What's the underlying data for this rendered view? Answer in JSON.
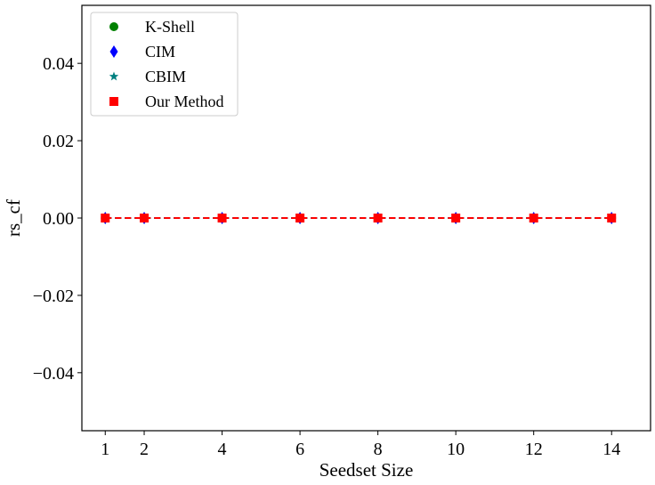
{
  "chart_data": {
    "type": "line",
    "xlabel": "Seedset Size",
    "ylabel": "rs_cf",
    "x": [
      1,
      2,
      4,
      6,
      8,
      10,
      12,
      14
    ],
    "xlim": [
      0.4,
      15.0
    ],
    "ylim": [
      -0.055,
      0.055
    ],
    "xticks": [
      1,
      2,
      4,
      6,
      8,
      10,
      12,
      14
    ],
    "yticks": [
      -0.04,
      -0.02,
      0.0,
      0.02,
      0.04
    ],
    "ytick_labels": [
      "−0.04",
      "−0.02",
      "0.00",
      "0.02",
      "0.04"
    ],
    "grid": false,
    "legend_position": "top-left",
    "series": [
      {
        "name": "K-Shell",
        "marker": "circle",
        "color": "#008000",
        "line": "dashed",
        "values": [
          0,
          0,
          0,
          0,
          0,
          0,
          0,
          0
        ]
      },
      {
        "name": "CIM",
        "marker": "diamond",
        "color": "#0000ff",
        "line": "dashed",
        "values": [
          0,
          0,
          0,
          0,
          0,
          0,
          0,
          0
        ]
      },
      {
        "name": "CBIM",
        "marker": "star",
        "color": "#008080",
        "line": "dashed",
        "values": [
          0,
          0,
          0,
          0,
          0,
          0,
          0,
          0
        ]
      },
      {
        "name": "Our Method",
        "marker": "square",
        "color": "#ff0000",
        "line": "dashed",
        "values": [
          0,
          0,
          0,
          0,
          0,
          0,
          0,
          0
        ]
      }
    ]
  }
}
